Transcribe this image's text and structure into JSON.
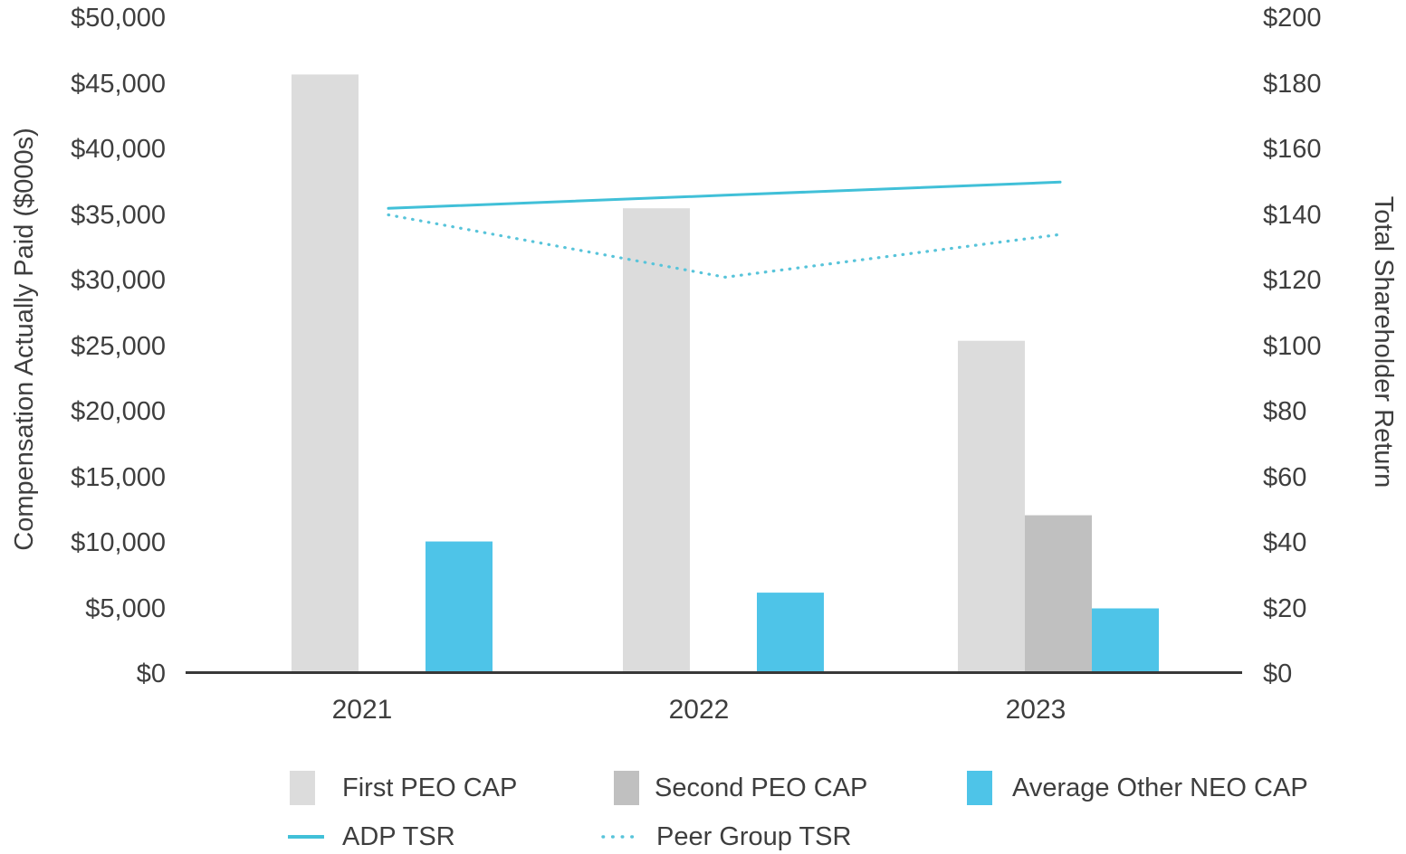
{
  "chart_data": {
    "type": "combo-bar-line",
    "title": "",
    "categories": [
      "2021",
      "2022",
      "2023"
    ],
    "left_axis": {
      "label": "Compensation Actually Paid ($000s)",
      "min": 0,
      "max": 50000,
      "tick_step": 5000,
      "tick_labels": [
        "$50,000",
        "$45,000",
        "$40,000",
        "$35,000",
        "$30,000",
        "$25,000",
        "$20,000",
        "$15,000",
        "$10,000",
        "$5,000",
        "$0"
      ]
    },
    "right_axis": {
      "label": "Total Shareholder Return",
      "min": 0,
      "max": 200,
      "tick_step": 20,
      "tick_labels": [
        "$200",
        "$180",
        "$160",
        "$140",
        "$120",
        "$100",
        "$80",
        "$60",
        "$40",
        "$20",
        "$0"
      ]
    },
    "bar_series": [
      {
        "name": "First PEO CAP",
        "color": "#dcdcdc",
        "values": [
          45700,
          35500,
          25400
        ]
      },
      {
        "name": "Second PEO CAP",
        "color": "#c0c0c0",
        "values": [
          null,
          null,
          12100
        ]
      },
      {
        "name": "Average Other NEO CAP",
        "color": "#4ec4e8",
        "values": [
          10100,
          6200,
          5000
        ]
      }
    ],
    "line_series": [
      {
        "name": "ADP TSR",
        "color": "#41c0d8",
        "style": "solid",
        "values": [
          142,
          146,
          150
        ]
      },
      {
        "name": "Peer Group TSR",
        "color": "#58c4da",
        "style": "dotted",
        "values": [
          140,
          121,
          134
        ]
      }
    ],
    "legend_position": "bottom",
    "grid": false,
    "axis_line_color": "#383838"
  }
}
